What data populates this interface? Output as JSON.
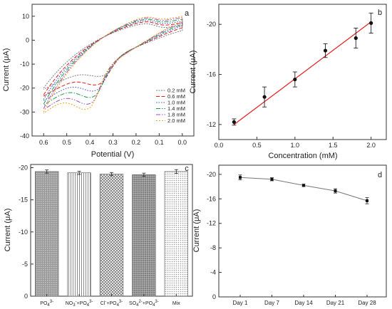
{
  "chart_data": [
    {
      "panel": "a",
      "type": "line",
      "xlabel": "Potential (V)",
      "ylabel": "Current (μA)",
      "xlim": [
        0.65,
        -0.05
      ],
      "ylim": [
        -40,
        15
      ],
      "xticks": [
        "0.6",
        "0.5",
        "0.4",
        "0.3",
        "0.2",
        "0.1",
        "0.0"
      ],
      "yticks": [
        "10",
        "0",
        "-10",
        "-20",
        "-30",
        "-40"
      ],
      "grid": false,
      "legend_position": "bottom-right",
      "series": [
        {
          "name": "0.2 mM",
          "color": "#7f7f7f"
        },
        {
          "name": "0.6 mM",
          "color": "#e41a1c"
        },
        {
          "name": "1.0 mM",
          "color": "#3b4cc0"
        },
        {
          "name": "1.4 mM",
          "color": "#1a9850"
        },
        {
          "name": "1.8 mM",
          "color": "#9e4fb5"
        },
        {
          "name": "2.0 mM",
          "color": "#f0a020"
        }
      ],
      "peak_current": [
        -21.5,
        -24.5,
        -26.5,
        -28.5,
        -30.5,
        -32.0
      ]
    },
    {
      "panel": "b",
      "type": "scatter",
      "xlabel": "Concentration (mM)",
      "ylabel": "Current (μA)",
      "xlim": [
        0.0,
        2.2
      ],
      "ylim": [
        -10.8,
        -21.6
      ],
      "xticks": [
        "0.0",
        "0.5",
        "1.0",
        "1.5",
        "2.0"
      ],
      "yticks": [
        "-12",
        "-16",
        "-20"
      ],
      "x": [
        0.2,
        0.6,
        1.0,
        1.4,
        1.8,
        2.0
      ],
      "y": [
        -12.2,
        -14.2,
        -15.6,
        -17.9,
        -18.9,
        -20.1
      ],
      "error": [
        0.25,
        0.8,
        0.6,
        0.55,
        0.8,
        0.8
      ],
      "fit_line": {
        "x": [
          0.2,
          2.0
        ],
        "y": [
          -12.0,
          -20.2
        ],
        "color": "#e41a1c"
      },
      "grid": false
    },
    {
      "panel": "c",
      "type": "bar",
      "ylabel": "Current (μA)",
      "ylim": [
        0,
        -20.5
      ],
      "yticks": [
        "0",
        "-5",
        "-10",
        "-15",
        "-20"
      ],
      "categories": [
        {
          "main": "PO",
          "sub": "4",
          "sup": "3-"
        },
        {
          "main": "NO",
          "sub": "3",
          "sup": "-",
          "main2": "+PO",
          "sub2": "4",
          "sup2": "3-"
        },
        {
          "main": "Cl",
          "sup": "-",
          "main2": "+PO",
          "sub2": "4",
          "sup2": "3-"
        },
        {
          "main": "SO",
          "sub": "4",
          "sup": "2-",
          "main2": "+PO",
          "sub2": "4",
          "sup2": "3-"
        },
        {
          "main": "Mix"
        }
      ],
      "values": [
        -19.4,
        -19.2,
        -19.0,
        -18.9,
        -19.4
      ],
      "error": [
        0.25,
        0.25,
        0.25,
        0.25,
        0.3
      ],
      "grid": false
    },
    {
      "panel": "d",
      "type": "line",
      "ylabel": "Current (μA)",
      "ylim": [
        0,
        -21.5
      ],
      "yticks": [
        "0",
        "-4",
        "-8",
        "-12",
        "-16",
        "-20"
      ],
      "categories": [
        "Day 1",
        "Day 7",
        "Day 14",
        "Day 21",
        "Day 28"
      ],
      "values": [
        -19.5,
        -19.2,
        -18.2,
        -17.3,
        -15.7
      ],
      "error": [
        0.4,
        0.25,
        0.2,
        0.35,
        0.5
      ],
      "grid": false
    }
  ]
}
